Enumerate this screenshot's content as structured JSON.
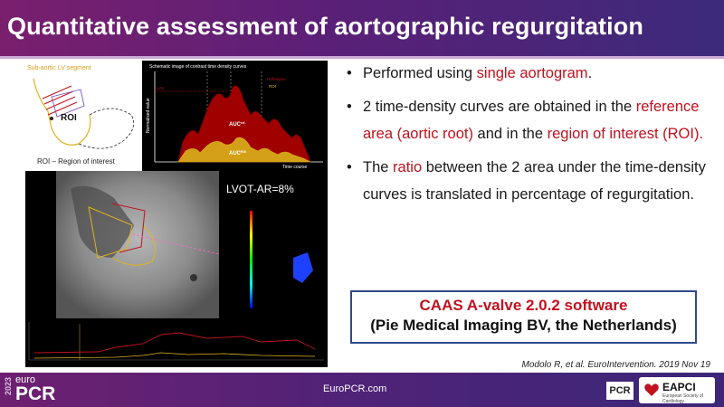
{
  "title": "Quantitative assessment of aortographic regurgitation",
  "schematic": {
    "segment_label": "Sub-aortic LV segment",
    "roi_label": "ROI",
    "roi_caption": "ROI – Region of interest",
    "curve_title": "Schematic image of contrast time density curves",
    "y_axis": "Normalised value",
    "x_axis": "Time course",
    "ref_label": "Reference",
    "roi_curve_label": "ROI",
    "auc_ref": "AUC",
    "auc_ref_sup": "ref.",
    "auc_roi": "AUC",
    "auc_roi_sup": "ROI",
    "max_label": "LVS"
  },
  "angio": {
    "lvot_label": "LVOT-AR=8%"
  },
  "bullets": [
    {
      "pre": "Performed using ",
      "hl": "single aortogram",
      "post": "."
    },
    {
      "pre": "2 time-density curves are obtained in the ",
      "hl": "reference area (aortic root)",
      "mid": " and in the ",
      "hl2": "region of interest (ROI)",
      "post": "."
    },
    {
      "pre": "The ",
      "hl": "ratio",
      "post": " between the 2 area under the time-density curves is translated in percentage of regurgitation."
    }
  ],
  "software": {
    "line1": "CAAS A-valve 2.0.2 software",
    "line2": "(Pie Medical Imaging BV, the Netherlands)"
  },
  "citation": "Modolo R, et al. EuroIntervention. 2019 Nov 19",
  "footer": {
    "year": "2023",
    "euro": "euro",
    "pcr": "PCR",
    "site": "EuroPCR.com",
    "pcr_badge": "PCR",
    "eapci": "EAPCI",
    "eapci_sub": "European Society of Cardiology"
  },
  "colors": {
    "title_bar": "#5a2077",
    "highlight_red": "#c0121f",
    "box_border": "#2e4a8c",
    "curve_ref": "#8b0000",
    "curve_roi": "#d4a017"
  }
}
